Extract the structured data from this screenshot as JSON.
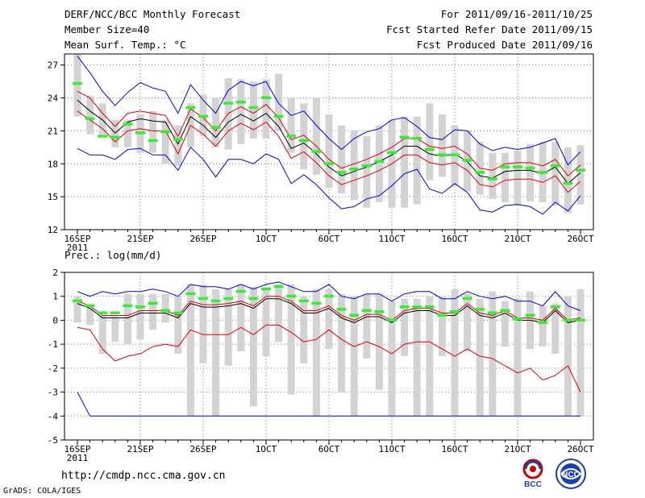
{
  "header": {
    "title": "DERF/NCC/BCC Monthly Forecast",
    "member_size": "Member Size=40",
    "variable": "Mean Surf. Temp.: °C",
    "period": "For 2011/09/16-2011/10/25",
    "started": "Fcst Started Refer Date 2011/09/15",
    "produced": "Fcst Produced Date 2011/09/16"
  },
  "footer": {
    "url": "http://cmdp.ncc.cma.gov.cn",
    "credit": "GrADS: COLA/IGES",
    "logo_left_text": "BCC",
    "logo_right_text": "NCC"
  },
  "colors": {
    "box": "#d3d3d3",
    "median": "#33ee33",
    "mean": "#000000",
    "inner": "#dd0000",
    "outer": "#0000dd",
    "grid": "#777777"
  },
  "x_labels": [
    "16SEP",
    "21SEP",
    "26SEP",
    "1OCT",
    "6OCT",
    "11OCT",
    "16OCT",
    "21OCT",
    "26OCT"
  ],
  "year_label": "2011",
  "chart_data": [
    {
      "type": "box-plume",
      "title": "Mean Surf. Temp.: °C",
      "x_start_day": 1,
      "xlim": [
        1,
        41
      ],
      "ylim": [
        12,
        28
      ],
      "yticks": [
        12,
        15,
        18,
        21,
        24,
        27
      ],
      "grid": true,
      "series": [
        {
          "name": "box_top",
          "values": [
            28,
            24.2,
            23.5,
            22,
            22,
            22.5,
            22.8,
            22,
            21.5,
            23.5,
            24.3,
            24,
            25.8,
            25.7,
            25.5,
            25.7,
            26.2,
            24,
            23.5,
            24,
            22.5,
            21.5,
            21,
            20.5,
            21.5,
            22,
            22.3,
            22.3,
            23.5,
            22.5,
            21.5,
            21,
            20,
            19,
            19,
            19.2,
            19.8,
            20,
            20,
            19.5,
            19.7
          ]
        },
        {
          "name": "box_bottom",
          "values": [
            22.3,
            20.7,
            20.7,
            19.5,
            19.5,
            19,
            19,
            18,
            17.8,
            19.5,
            20.5,
            19.5,
            19.3,
            19.8,
            20.3,
            20.3,
            21,
            19,
            17.5,
            17,
            15.8,
            15.3,
            14.7,
            14,
            14.5,
            14,
            14,
            14.3,
            16.5,
            16.8,
            16,
            15.5,
            15.2,
            14.8,
            14.5,
            14.2,
            14.6,
            14.5,
            14.2,
            13.5,
            14.3
          ]
        },
        {
          "name": "median",
          "values": [
            25.3,
            22.1,
            20.5,
            20.4,
            21.6,
            20.8,
            20.1,
            20.9,
            20.2,
            23.1,
            22.3,
            21.3,
            23.5,
            23.6,
            23.1,
            24,
            22.3,
            20.5,
            20.1,
            19.1,
            18,
            17.2,
            17.5,
            17.8,
            18.2,
            19,
            20.4,
            20.3,
            19.3,
            18.8,
            18.8,
            18.3,
            17.2,
            16.6,
            17.7,
            17.7,
            17.6,
            17.2,
            17.8,
            16.2,
            17.4
          ]
        },
        {
          "name": "ensemble_mean",
          "values": [
            23.8,
            22.8,
            22,
            20.8,
            21.8,
            22.1,
            21.9,
            21.8,
            19.8,
            22.3,
            21.5,
            20.4,
            21.8,
            22.5,
            21.9,
            22.6,
            21.4,
            19.4,
            19.9,
            18.9,
            17.7,
            16.9,
            17.3,
            17.7,
            18.2,
            18.8,
            19.6,
            19.6,
            18.9,
            18.7,
            18.9,
            18.2,
            16.9,
            16.7,
            17.3,
            17.4,
            17.4,
            17.1,
            17.7,
            16.2,
            17.2
          ]
        },
        {
          "name": "inner_upper",
          "values": [
            24.6,
            24,
            22.6,
            21.4,
            22.6,
            22.8,
            22.6,
            22.4,
            20.5,
            23,
            22.2,
            21,
            22.6,
            23.2,
            22.6,
            23.4,
            22.2,
            20.2,
            20.6,
            19.6,
            18.4,
            17.6,
            18,
            18.4,
            18.9,
            19.5,
            20.3,
            20.3,
            19.6,
            19.4,
            19.6,
            18.9,
            17.6,
            17.4,
            18,
            18.1,
            18.1,
            17.8,
            18.4,
            16.9,
            17.9
          ]
        },
        {
          "name": "inner_lower",
          "values": [
            22.8,
            22,
            21.2,
            20,
            21,
            21.2,
            21,
            21,
            18.9,
            21.5,
            20.7,
            19.6,
            21,
            21.7,
            21.1,
            21.8,
            20.5,
            18.5,
            19.1,
            18.1,
            16.9,
            16.1,
            16.5,
            16.9,
            17.4,
            18,
            18.8,
            18.8,
            18.1,
            17.9,
            18.1,
            17.4,
            16.1,
            15.9,
            16.5,
            16.6,
            16.6,
            16.3,
            16.9,
            15.4,
            16.4
          ]
        },
        {
          "name": "max",
          "values": [
            27.8,
            26.3,
            24.6,
            23.3,
            24.5,
            25.4,
            24.9,
            24.6,
            22.6,
            25.2,
            23.8,
            22.6,
            24.7,
            25.5,
            25.1,
            25.5,
            23.5,
            22.4,
            22.8,
            21.5,
            20.3,
            19.3,
            20.3,
            20.9,
            21.2,
            22,
            22.2,
            21.4,
            20.4,
            20.2,
            21.1,
            21,
            19.8,
            19.2,
            19.5,
            19.3,
            19.5,
            19.9,
            20.3,
            17.9,
            19.1
          ]
        },
        {
          "name": "min",
          "values": [
            19.4,
            18.8,
            18.8,
            18.4,
            19.3,
            19.4,
            18.8,
            18.8,
            17.4,
            19.5,
            18.4,
            16.8,
            18.4,
            18.4,
            18,
            18.9,
            18.4,
            16.2,
            17,
            16.1,
            14.9,
            13.9,
            14.1,
            14.8,
            15.1,
            16,
            17.1,
            17.5,
            15.7,
            15.3,
            16.2,
            15.4,
            13.8,
            13.6,
            14.2,
            14.3,
            14.1,
            13.4,
            14.5,
            13.7,
            15.1
          ]
        }
      ]
    },
    {
      "type": "box-plume",
      "title": "Prec.: log(mm/d)",
      "x_start_day": 1,
      "xlim": [
        1,
        41
      ],
      "ylim": [
        -5,
        2
      ],
      "yticks": [
        -5,
        -4,
        -3,
        -2,
        -1,
        0,
        1,
        2
      ],
      "grid": true,
      "series": [
        {
          "name": "box_top",
          "values": [
            1,
            0.5,
            0.2,
            0.2,
            1.1,
            1.1,
            1.1,
            1.1,
            1,
            1.5,
            1.5,
            1.3,
            1.3,
            1.5,
            1.4,
            1.3,
            1.5,
            1.5,
            1,
            1.3,
            1.3,
            1.1,
            1,
            1.1,
            1.1,
            0.8,
            0.9,
            0.9,
            1,
            1,
            1.3,
            1.1,
            0.9,
            1.2,
            0.8,
            0.9,
            1.2,
            0.6,
            0.7,
            1,
            1.3
          ]
        },
        {
          "name": "box_bottom",
          "values": [
            -0.1,
            -0.2,
            -1.4,
            -0.9,
            -1,
            -0.8,
            -0.4,
            -0.1,
            -1.4,
            -4,
            -1.8,
            -4,
            -1.9,
            -1.3,
            -3.6,
            -1.5,
            -0.9,
            -3.1,
            -1.8,
            -4,
            -1.2,
            -3,
            -4,
            -1.6,
            -2.9,
            -4,
            -1.5,
            -4,
            -4,
            -1.5,
            -4,
            -1.3,
            -4,
            -4,
            -1.1,
            -4,
            -1.2,
            -1.1,
            -1.4,
            -4,
            -4
          ]
        },
        {
          "name": "median",
          "values": [
            0.8,
            0.6,
            0.3,
            0.3,
            0.6,
            0.55,
            0.7,
            0.4,
            0.3,
            1.1,
            0.9,
            0.8,
            0.9,
            1.2,
            0.9,
            1.3,
            1.4,
            1,
            0.8,
            0.7,
            1,
            0.45,
            0.2,
            0.4,
            0.35,
            0,
            0.55,
            0.55,
            0.55,
            0.2,
            0.35,
            0.9,
            0.45,
            0.3,
            0.4,
            0.05,
            0.2,
            -0.1,
            0.55,
            0,
            0
          ]
        },
        {
          "name": "ensemble_mean",
          "values": [
            0.7,
            0.5,
            0.1,
            0.1,
            0.1,
            0.3,
            0.3,
            0.3,
            0.1,
            0.7,
            0.55,
            0.55,
            0.6,
            0.7,
            0.5,
            0.9,
            0.9,
            0.7,
            0.3,
            0.3,
            0.5,
            0.1,
            -0.1,
            0.15,
            0.15,
            -0.1,
            0.3,
            0.4,
            0.4,
            0.2,
            0.2,
            0.6,
            0.2,
            0.1,
            0.3,
            0,
            0,
            -0.1,
            0.4,
            -0.1,
            0
          ]
        },
        {
          "name": "inner_upper",
          "values": [
            0.8,
            0.6,
            0.2,
            0.2,
            0.2,
            0.4,
            0.4,
            0.4,
            0.2,
            0.8,
            0.65,
            0.65,
            0.7,
            0.8,
            0.6,
            1,
            1,
            0.8,
            0.4,
            0.4,
            0.6,
            0.2,
            0,
            0.25,
            0.25,
            0,
            0.4,
            0.5,
            0.5,
            0.3,
            0.3,
            0.7,
            0.3,
            0.2,
            0.4,
            0.1,
            0.1,
            0,
            0.5,
            0,
            0.1
          ]
        },
        {
          "name": "inner_lower",
          "values": [
            -0.3,
            -0.4,
            -1.2,
            -1.7,
            -1.5,
            -1.4,
            -1.1,
            -1,
            -1.1,
            -0.4,
            -0.6,
            -0.6,
            -0.6,
            -0.3,
            -0.6,
            -0.2,
            -0.2,
            -0.5,
            -0.9,
            -0.8,
            -0.4,
            -0.8,
            -1.1,
            -0.9,
            -1.1,
            -1.4,
            -1,
            -0.9,
            -0.9,
            -1.2,
            -1.5,
            -1.2,
            -1.5,
            -1.6,
            -1.9,
            -2.2,
            -2,
            -2.5,
            -2.3,
            -1.9,
            -3
          ]
        },
        {
          "name": "max",
          "values": [
            1.2,
            1,
            1.2,
            1.1,
            1.2,
            1.2,
            1.3,
            1.2,
            1,
            1.5,
            1.4,
            1.4,
            1.3,
            1.5,
            1.3,
            1.5,
            1.6,
            1.4,
            1.2,
            1.2,
            1.5,
            1,
            0.9,
            1.1,
            1.1,
            0.8,
            1.1,
            1.2,
            1.2,
            0.9,
            0.9,
            1.2,
            1,
            0.9,
            1,
            0.8,
            0.8,
            0.6,
            1.2,
            0.6,
            0.4
          ]
        },
        {
          "name": "min",
          "values": [
            -3,
            -4,
            -4,
            -4,
            -4,
            -4,
            -4,
            -4,
            -4,
            -4,
            -4,
            -4,
            -4,
            -4,
            -4,
            -4,
            -4,
            -4,
            -4,
            -4,
            -4,
            -4,
            -4,
            -4,
            -4,
            -4,
            -4,
            -4,
            -4,
            -4,
            -4,
            -4,
            -4,
            -4,
            -4,
            -4,
            -4,
            -4,
            -4,
            -4,
            -4
          ]
        }
      ]
    }
  ]
}
